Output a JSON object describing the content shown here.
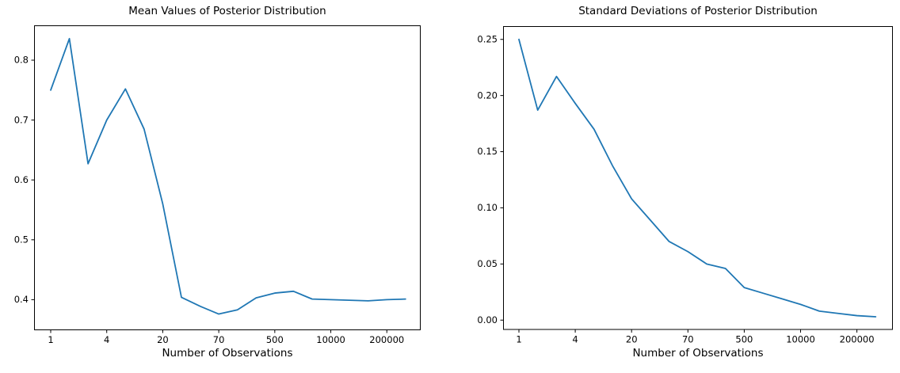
{
  "figure": {
    "background": "#ffffff",
    "accent_line_color": "#1f77b4",
    "axis_color": "#000000"
  },
  "chart_data": [
    {
      "type": "line",
      "title": "Mean Values of Posterior Distribution",
      "xlabel": "Number of Observations",
      "ylabel": "",
      "x_axis_note": "20 points at equal index spacing; tick labels placed at every 3rd point",
      "x_tick_labels": [
        "1",
        "4",
        "20",
        "70",
        "500",
        "10000",
        "200000"
      ],
      "x_tick_indices": [
        0,
        3,
        6,
        9,
        12,
        15,
        18
      ],
      "y_ticks": [
        0.4,
        0.5,
        0.6,
        0.7,
        0.8
      ],
      "y_tick_labels": [
        "0.4",
        "0.5",
        "0.6",
        "0.7",
        "0.8"
      ],
      "ylim": [
        0.349,
        0.858
      ],
      "grid": false,
      "legend": null,
      "line_color": "#1f77b4",
      "values": [
        0.75,
        0.836,
        0.627,
        0.7,
        0.752,
        0.685,
        0.56,
        0.404,
        0.389,
        0.376,
        0.383,
        0.403,
        0.411,
        0.414,
        0.401,
        0.4,
        0.399,
        0.398,
        0.4,
        0.401
      ]
    },
    {
      "type": "line",
      "title": "Standard Deviations of Posterior Distribution",
      "xlabel": "Number of Observations",
      "ylabel": "",
      "x_axis_note": "20 points at equal index spacing; tick labels placed at every 3rd point",
      "x_tick_labels": [
        "1",
        "4",
        "20",
        "70",
        "500",
        "10000",
        "200000"
      ],
      "x_tick_indices": [
        0,
        3,
        6,
        9,
        12,
        15,
        18
      ],
      "y_ticks": [
        0.0,
        0.05,
        0.1,
        0.15,
        0.2,
        0.25
      ],
      "y_tick_labels": [
        "0.00",
        "0.05",
        "0.10",
        "0.15",
        "0.20",
        "0.25"
      ],
      "ylim": [
        -0.009,
        0.262
      ],
      "grid": false,
      "legend": null,
      "line_color": "#1f77b4",
      "values": [
        0.25,
        0.187,
        0.217,
        0.193,
        0.17,
        0.137,
        0.108,
        0.089,
        0.07,
        0.061,
        0.05,
        0.046,
        0.029,
        0.024,
        0.019,
        0.014,
        0.008,
        0.006,
        0.004,
        0.003
      ]
    }
  ]
}
